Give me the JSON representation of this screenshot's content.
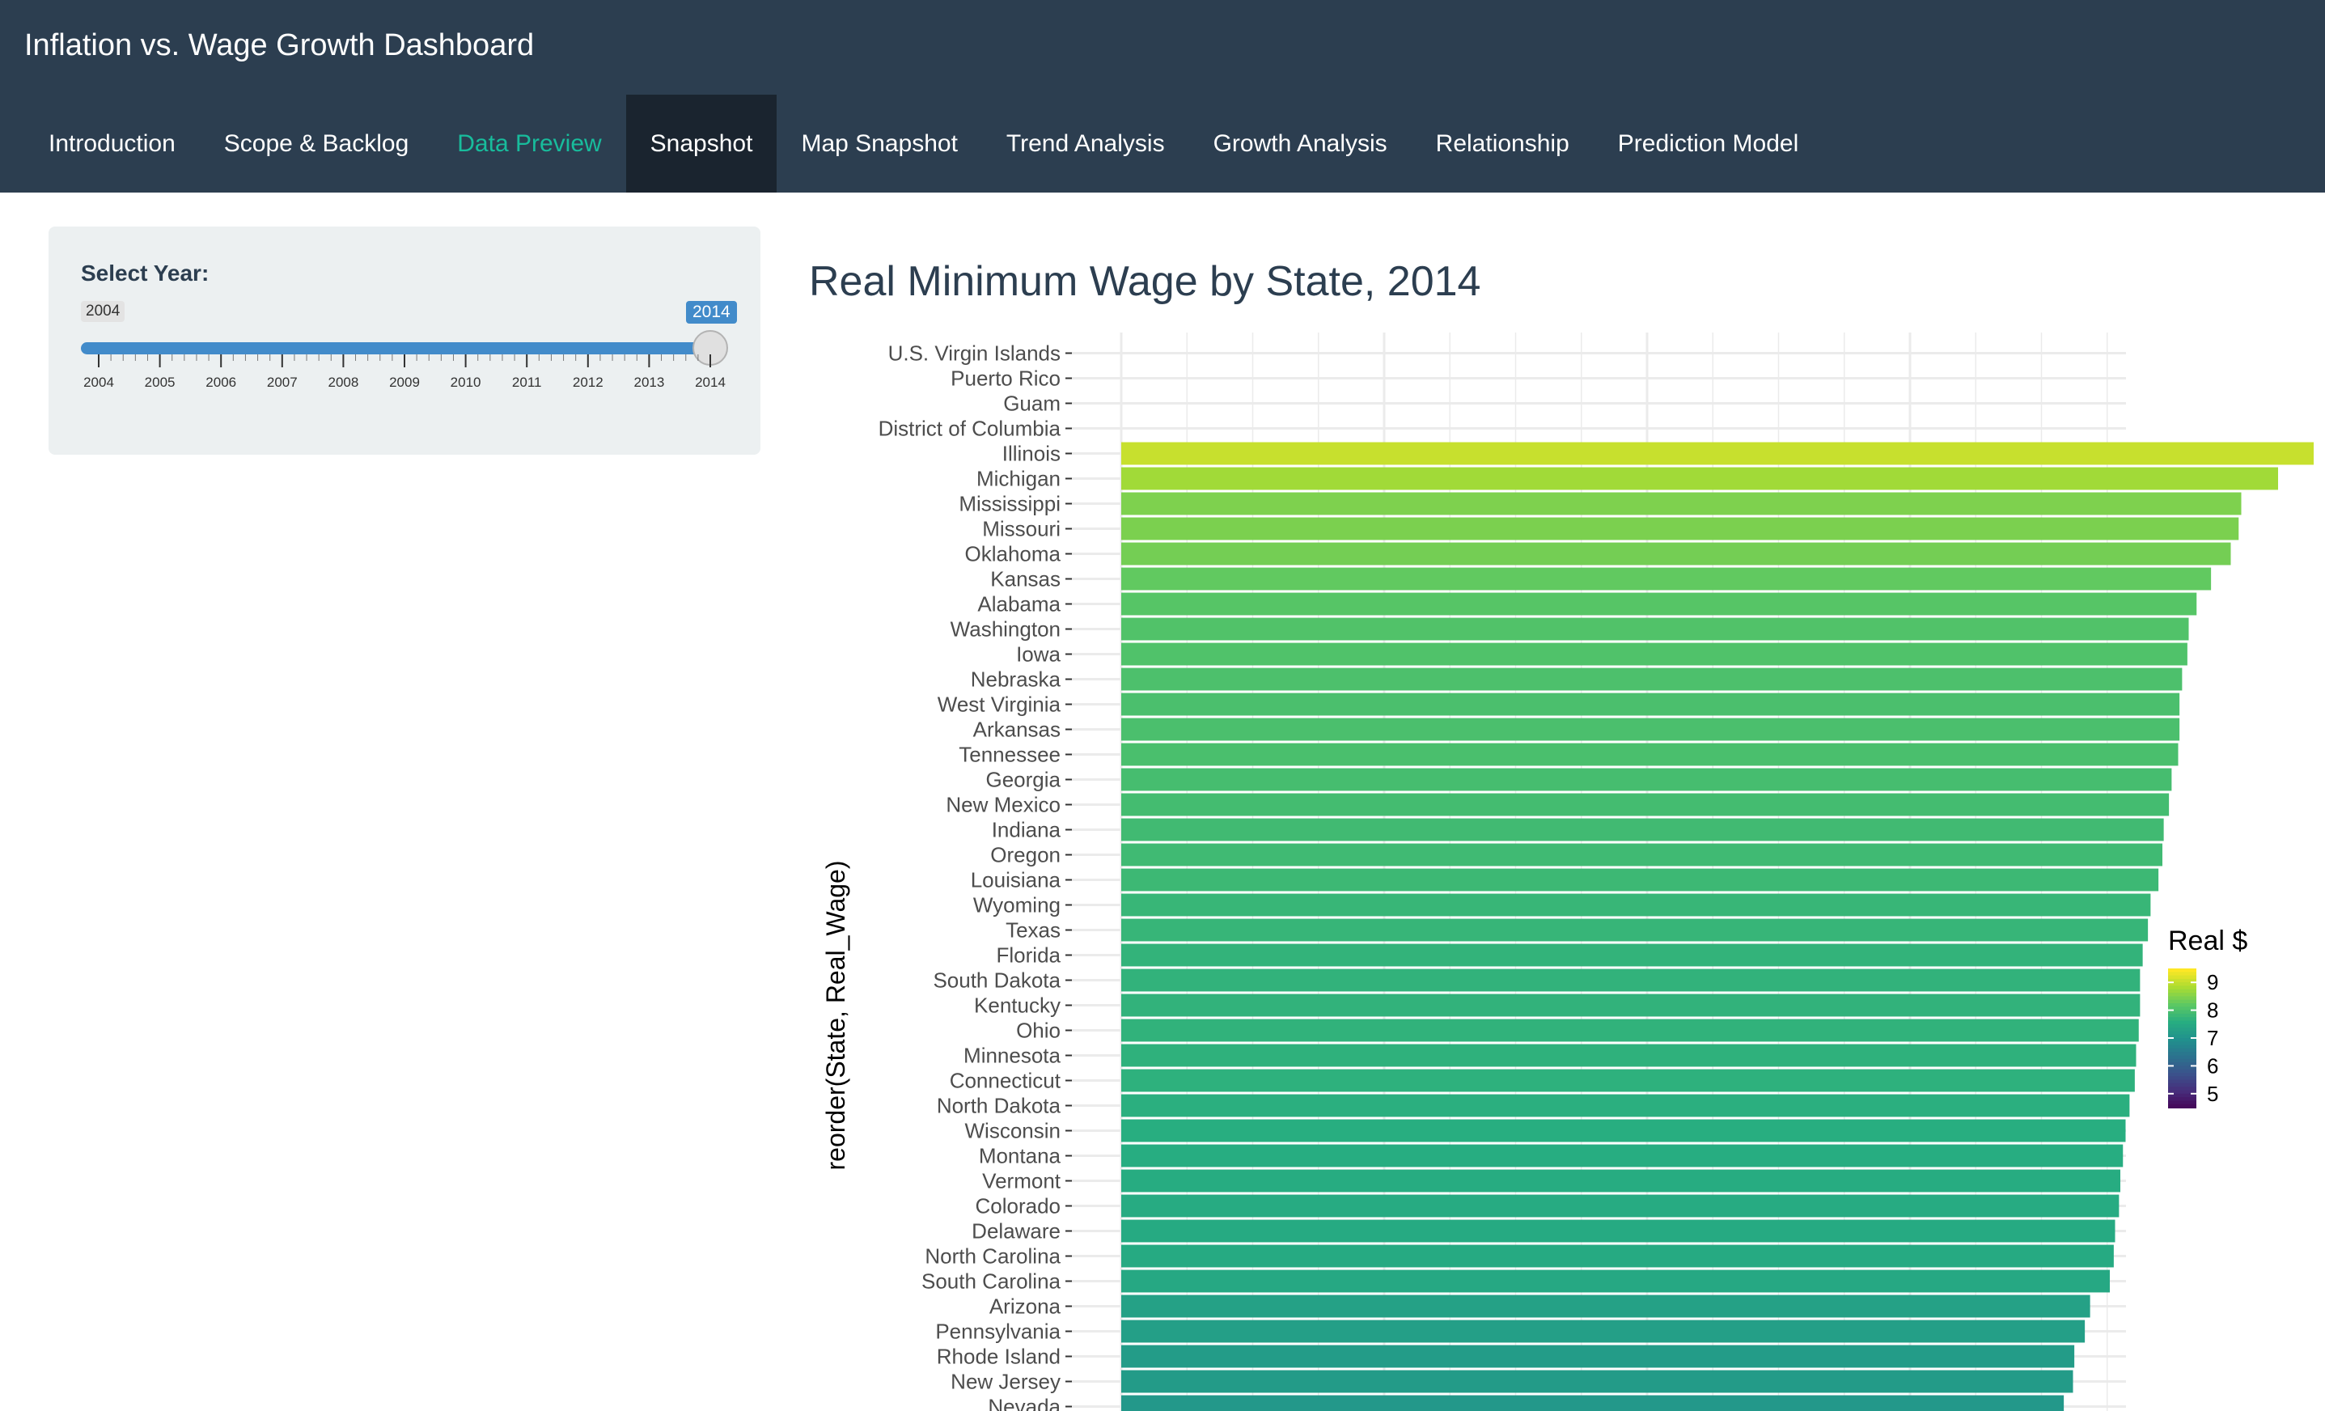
{
  "app": {
    "title": "Inflation vs. Wage Growth Dashboard"
  },
  "nav": {
    "tabs": [
      {
        "label": "Introduction",
        "state": "normal"
      },
      {
        "label": "Scope & Backlog",
        "state": "normal"
      },
      {
        "label": "Data Preview",
        "state": "hover"
      },
      {
        "label": "Snapshot",
        "state": "active"
      },
      {
        "label": "Map Snapshot",
        "state": "normal"
      },
      {
        "label": "Trend Analysis",
        "state": "normal"
      },
      {
        "label": "Growth Analysis",
        "state": "normal"
      },
      {
        "label": "Relationship",
        "state": "normal"
      },
      {
        "label": "Prediction Model",
        "state": "normal"
      }
    ]
  },
  "sidebar": {
    "label": "Select Year:",
    "slider": {
      "min_label": "2004",
      "value_label": "2014",
      "min": 2004,
      "max": 2014,
      "value": 2014,
      "ticks": [
        "2004",
        "2005",
        "2006",
        "2007",
        "2008",
        "2009",
        "2010",
        "2011",
        "2012",
        "2013",
        "2014"
      ]
    }
  },
  "main": {
    "title": "Real Minimum Wage by State, 2014"
  },
  "colors": {
    "navbar": "#2c3e50",
    "nav_active": "#1a242f",
    "nav_hover": "#18bc9c",
    "slider": "#428bca"
  },
  "chart_data": {
    "type": "bar",
    "orientation": "horizontal",
    "ylabel": "reorder(State, Real_Wage)",
    "xlabel": "",
    "legend": {
      "title": "Real $",
      "ticks": [
        9,
        8,
        7,
        6,
        5
      ],
      "range": [
        4.5,
        9.5
      ],
      "palette": "viridis",
      "placement": "right"
    },
    "xlim": [
      0,
      9.5
    ],
    "grid": true,
    "categories": [
      "U.S. Virgin Islands",
      "Puerto Rico",
      "Guam",
      "District of Columbia",
      "Illinois",
      "Michigan",
      "Mississippi",
      "Missouri",
      "Oklahoma",
      "Kansas",
      "Alabama",
      "Washington",
      "Iowa",
      "Nebraska",
      "West Virginia",
      "Arkansas",
      "Tennessee",
      "Georgia",
      "New Mexico",
      "Indiana",
      "Oregon",
      "Louisiana",
      "Wyoming",
      "Texas",
      "Florida",
      "South Dakota",
      "Kentucky",
      "Ohio",
      "Minnesota",
      "Connecticut",
      "North Dakota",
      "Wisconsin",
      "Montana",
      "Vermont",
      "Colorado",
      "Delaware",
      "North Carolina",
      "South Carolina",
      "Arizona",
      "Pennsylvania",
      "Rhode Island",
      "New Jersey",
      "Nevada"
    ],
    "values": [
      null,
      null,
      null,
      null,
      9.09,
      8.8,
      8.52,
      8.5,
      8.44,
      8.29,
      8.18,
      8.12,
      8.11,
      8.07,
      8.05,
      8.05,
      8.04,
      7.99,
      7.97,
      7.93,
      7.92,
      7.89,
      7.83,
      7.81,
      7.77,
      7.75,
      7.75,
      7.74,
      7.72,
      7.71,
      7.67,
      7.64,
      7.62,
      7.6,
      7.59,
      7.56,
      7.55,
      7.52,
      7.37,
      7.33,
      7.25,
      7.24,
      7.17
    ]
  }
}
